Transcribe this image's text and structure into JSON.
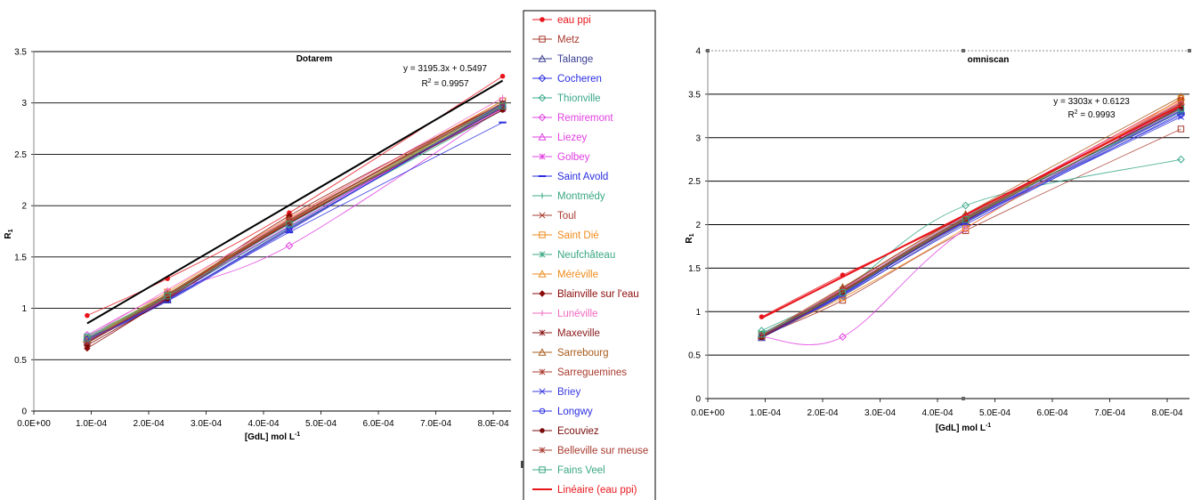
{
  "chart_data": [
    {
      "type": "line",
      "title": "Dotarem",
      "xlabel": "[GdL] mol L",
      "xlabel_sup": "-1",
      "ylabel": "R",
      "ylabel_sub": "1",
      "xlim": [
        0,
        0.00085
      ],
      "ylim": [
        0,
        3.5
      ],
      "x_ticks": [
        "0.0E+00",
        "1.0E-04",
        "2.0E-04",
        "3.0E-04",
        "4.0E-04",
        "5.0E-04",
        "6.0E-04",
        "7.0E-04",
        "8.0E-04"
      ],
      "y_ticks": [
        "0",
        "0.5",
        "1",
        "1.5",
        "2",
        "2.5",
        "3",
        "3.5"
      ],
      "equation": "y = 3195.3x + 0.5497",
      "r2_label": "R",
      "r2_sup": "2",
      "r2_value": " = 0.9957",
      "x": [
        9.5e-05,
        0.000238,
        0.000455,
        0.000835
      ],
      "series": [
        {
          "name": "eau ppi",
          "values": [
            0.93,
            1.29,
            1.93,
            3.26
          ]
        },
        {
          "name": "Metz",
          "values": [
            0.66,
            1.12,
            1.85,
            3.02
          ]
        },
        {
          "name": "Talange",
          "values": [
            0.69,
            1.08,
            1.77,
            2.98
          ]
        },
        {
          "name": "Cocheren",
          "values": [
            0.7,
            1.1,
            1.8,
            2.97
          ]
        },
        {
          "name": "Thionville",
          "values": [
            0.72,
            1.13,
            1.83,
            2.99
          ]
        },
        {
          "name": "Remiremont",
          "values": [
            0.74,
            1.15,
            1.61,
            2.95
          ]
        },
        {
          "name": "Liezey",
          "values": [
            0.71,
            1.12,
            1.8,
            2.96
          ]
        },
        {
          "name": "Golbey",
          "values": [
            0.68,
            1.1,
            1.82,
            2.94
          ]
        },
        {
          "name": "Saint Avold",
          "values": [
            0.68,
            1.07,
            1.74,
            2.81
          ]
        },
        {
          "name": "Montmédy",
          "values": [
            0.7,
            1.11,
            1.79,
            2.93
          ]
        },
        {
          "name": "Toul",
          "values": [
            0.67,
            1.14,
            1.86,
            3.0
          ]
        },
        {
          "name": "Saint Dié",
          "values": [
            0.7,
            1.16,
            1.88,
            3.02
          ]
        },
        {
          "name": "Neufchâteau",
          "values": [
            0.73,
            1.14,
            1.85,
            2.99
          ]
        },
        {
          "name": "Méréville",
          "values": [
            0.69,
            1.13,
            1.84,
            2.97
          ]
        },
        {
          "name": "Blainville sur l'eau",
          "values": [
            0.61,
            1.1,
            1.9,
            3.0
          ]
        },
        {
          "name": "Lunéville",
          "values": [
            0.72,
            1.18,
            1.87,
            3.05
          ]
        },
        {
          "name": "Maxeville",
          "values": [
            0.67,
            1.12,
            1.83,
            2.96
          ]
        },
        {
          "name": "Sarrebourg",
          "values": [
            0.7,
            1.14,
            1.86,
            2.98
          ]
        },
        {
          "name": "Sarreguemines",
          "values": [
            0.66,
            1.11,
            1.84,
            2.95
          ]
        },
        {
          "name": "Briey",
          "values": [
            0.68,
            1.09,
            1.76,
            2.99
          ]
        },
        {
          "name": "Longwy",
          "values": [
            0.7,
            1.08,
            1.78,
            2.96
          ]
        },
        {
          "name": "Ecouviez",
          "values": [
            0.64,
            1.09,
            1.83,
            2.93
          ]
        },
        {
          "name": "Belleville sur meuse",
          "values": [
            0.67,
            1.13,
            1.85,
            3.0
          ]
        },
        {
          "name": "Fains Veel",
          "values": [
            0.71,
            1.12,
            1.82,
            2.97
          ]
        }
      ],
      "trendline": {
        "name": "Linéaire (eau ppi)",
        "slope": 3195.3,
        "intercept": 0.5497
      }
    },
    {
      "type": "line",
      "title": "omniscan",
      "xlabel": "[GdL] mol L",
      "xlabel_sup": "-1",
      "ylabel": "R",
      "ylabel_sub": "1",
      "xlim": [
        0,
        0.00085
      ],
      "ylim": [
        0,
        4
      ],
      "x_ticks": [
        "0.0E+00",
        "1.0E-04",
        "2.0E-04",
        "3.0E-04",
        "4.0E-04",
        "5.0E-04",
        "6.0E-04",
        "7.0E-04",
        "8.0E-04"
      ],
      "y_ticks": [
        "0",
        "0.5",
        "1",
        "1.5",
        "2",
        "2.5",
        "3",
        "3.5",
        "4"
      ],
      "equation": "y = 3303x + 0.6123",
      "r2_label": "R",
      "r2_sup": "2",
      "r2_value": " = 0.9993",
      "x": [
        9.5e-05,
        0.000238,
        0.000455,
        0.000835
      ],
      "series": [
        {
          "name": "eau ppi",
          "values": [
            0.94,
            1.42,
            2.1,
            3.44
          ]
        },
        {
          "name": "Metz",
          "values": [
            0.72,
            1.13,
            1.93,
            3.1
          ]
        },
        {
          "name": "Talange",
          "values": [
            0.7,
            1.18,
            2.02,
            3.3
          ]
        },
        {
          "name": "Cocheren",
          "values": [
            0.71,
            1.2,
            2.04,
            3.26
          ]
        },
        {
          "name": "Thionville",
          "values": [
            0.78,
            1.25,
            2.22,
            2.75
          ]
        },
        {
          "name": "Remiremont",
          "values": [
            0.71,
            0.71,
            1.95,
            3.38
          ]
        },
        {
          "name": "Liezey",
          "values": [
            0.72,
            1.21,
            2.06,
            3.32
          ]
        },
        {
          "name": "Golbey",
          "values": [
            0.73,
            1.22,
            2.05,
            3.35
          ]
        },
        {
          "name": "Saint Avold",
          "values": [
            0.7,
            1.19,
            2.0,
            3.28
          ]
        },
        {
          "name": "Montmédy",
          "values": [
            0.74,
            1.23,
            2.07,
            3.33
          ]
        },
        {
          "name": "Toul",
          "values": [
            0.72,
            1.25,
            2.08,
            3.4
          ]
        },
        {
          "name": "Saint Dié",
          "values": [
            0.73,
            1.16,
            1.96,
            3.45
          ]
        },
        {
          "name": "Neufchâteau",
          "values": [
            0.75,
            1.24,
            2.09,
            3.3
          ]
        },
        {
          "name": "Méréville",
          "values": [
            0.72,
            1.22,
            2.05,
            3.42
          ]
        },
        {
          "name": "Blainville sur l'eau",
          "values": [
            0.71,
            1.27,
            2.11,
            3.36
          ]
        },
        {
          "name": "Lunéville",
          "values": [
            0.74,
            1.26,
            2.1,
            3.41
          ]
        },
        {
          "name": "Maxeville",
          "values": [
            0.72,
            1.23,
            2.06,
            3.34
          ]
        },
        {
          "name": "Sarrebourg",
          "values": [
            0.73,
            1.28,
            2.12,
            3.47
          ]
        },
        {
          "name": "Sarreguemines",
          "values": [
            0.71,
            1.24,
            2.08,
            3.37
          ]
        },
        {
          "name": "Briey",
          "values": [
            0.7,
            1.2,
            2.03,
            3.24
          ]
        },
        {
          "name": "Longwy",
          "values": [
            0.72,
            1.21,
            2.04,
            3.31
          ]
        },
        {
          "name": "Ecouviez",
          "values": [
            0.7,
            1.22,
            2.05,
            3.35
          ]
        },
        {
          "name": "Belleville sur meuse",
          "values": [
            0.72,
            1.24,
            2.07,
            3.39
          ]
        },
        {
          "name": "Fains Veel",
          "values": [
            0.74,
            1.22,
            2.06,
            3.33
          ]
        }
      ],
      "trendline": {
        "name": "Linéaire (eau ppi)",
        "slope": 3303,
        "intercept": 0.6123
      }
    }
  ],
  "legend": {
    "entries": [
      {
        "name": "eau ppi",
        "color": "#e8151b",
        "marker": "dot"
      },
      {
        "name": "Metz",
        "color": "#a83a2e",
        "marker": "square"
      },
      {
        "name": "Talange",
        "color": "#3b3f8f",
        "marker": "triangle"
      },
      {
        "name": "Cocheren",
        "color": "#2a2de0",
        "marker": "diamond"
      },
      {
        "name": "Thionville",
        "color": "#3aa88a",
        "marker": "diamond"
      },
      {
        "name": "Remiremont",
        "color": "#e040e0",
        "marker": "diamond"
      },
      {
        "name": "Liezey",
        "color": "#e040e0",
        "marker": "triangle"
      },
      {
        "name": "Golbey",
        "color": "#e040e0",
        "marker": "star"
      },
      {
        "name": "Saint Avold",
        "color": "#2a2de0",
        "marker": "dash"
      },
      {
        "name": "Montmédy",
        "color": "#3aa880",
        "marker": "plus"
      },
      {
        "name": "Toul",
        "color": "#a83a2e",
        "marker": "cross"
      },
      {
        "name": "Saint Dié",
        "color": "#f08a1a",
        "marker": "square"
      },
      {
        "name": "Neufchâteau",
        "color": "#3aa880",
        "marker": "star"
      },
      {
        "name": "Méréville",
        "color": "#f08a1a",
        "marker": "triangle"
      },
      {
        "name": "Blainville sur l'eau",
        "color": "#8b0a0a",
        "marker": "diamondfill"
      },
      {
        "name": "Lunéville",
        "color": "#f068c0",
        "marker": "plus"
      },
      {
        "name": "Maxeville",
        "color": "#8b1a1a",
        "marker": "star"
      },
      {
        "name": "Sarrebourg",
        "color": "#a85a1a",
        "marker": "triangle"
      },
      {
        "name": "Sarreguemines",
        "color": "#a83a2e",
        "marker": "star"
      },
      {
        "name": "Briey",
        "color": "#3a3ae0",
        "marker": "cross"
      },
      {
        "name": "Longwy",
        "color": "#2a2de0",
        "marker": "circle"
      },
      {
        "name": "Ecouviez",
        "color": "#7a0a0a",
        "marker": "dot"
      },
      {
        "name": "Belleville sur meuse",
        "color": "#a83a2e",
        "marker": "star"
      },
      {
        "name": "Fains Veel",
        "color": "#3aa880",
        "marker": "square"
      },
      {
        "name": "Linéaire (eau ppi)",
        "color": "#e8151b",
        "marker": "line"
      }
    ]
  }
}
